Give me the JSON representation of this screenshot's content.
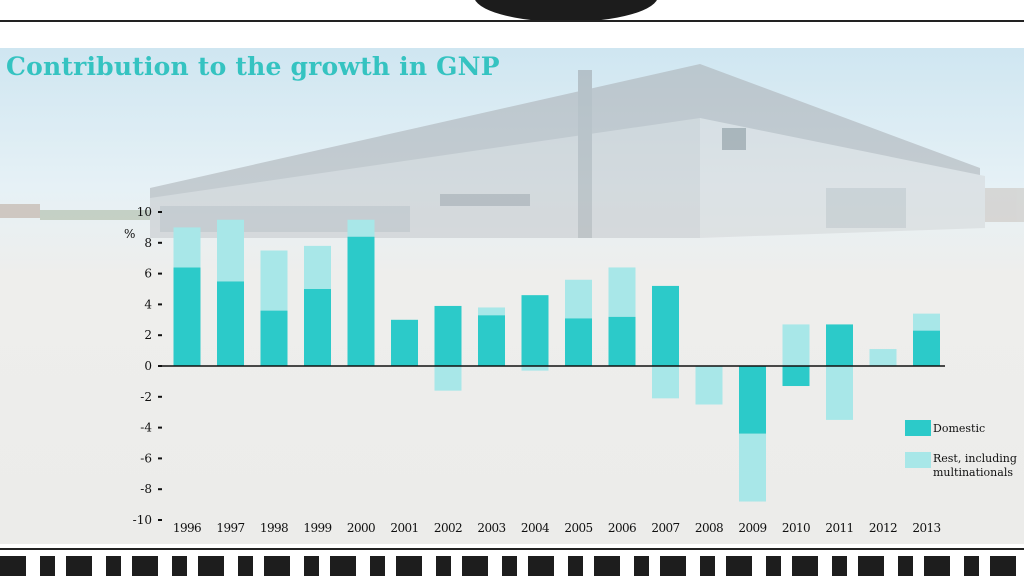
{
  "title": "Contribution to the growth in GNP",
  "colors": {
    "domestic": "#2ccac9",
    "rest": "#a8e7e8",
    "title": "#35c3c1"
  },
  "chart_data": {
    "type": "bar",
    "stacked": true,
    "title": "Contribution to the growth in GNP",
    "ylabel": "%",
    "ylim": [
      -10,
      10
    ],
    "yticks": [
      10,
      8,
      6,
      4,
      2,
      0,
      -2,
      -4,
      -6,
      -8,
      -10
    ],
    "categories": [
      "1996",
      "1997",
      "1998",
      "1999",
      "2000",
      "2001",
      "2002",
      "2003",
      "2004",
      "2005",
      "2006",
      "2007",
      "2008",
      "2009",
      "2010",
      "2011",
      "2012",
      "2013"
    ],
    "series": [
      {
        "name": "Domestic",
        "values": [
          6.4,
          5.5,
          3.6,
          5.0,
          8.4,
          3.0,
          3.9,
          3.3,
          4.6,
          3.1,
          3.2,
          5.2,
          0,
          -4.4,
          -1.3,
          2.7,
          0,
          2.3
        ]
      },
      {
        "name": "Rest, including multinationals",
        "values": [
          2.6,
          4.0,
          3.9,
          2.8,
          1.1,
          0,
          -1.6,
          0.5,
          -0.3,
          2.5,
          3.2,
          -2.1,
          -2.5,
          -4.4,
          2.7,
          -3.5,
          1.1,
          1.1
        ]
      }
    ],
    "legend": {
      "placement": "right",
      "items": [
        "Domestic",
        "Rest, including multinationals"
      ]
    },
    "grid": false
  }
}
